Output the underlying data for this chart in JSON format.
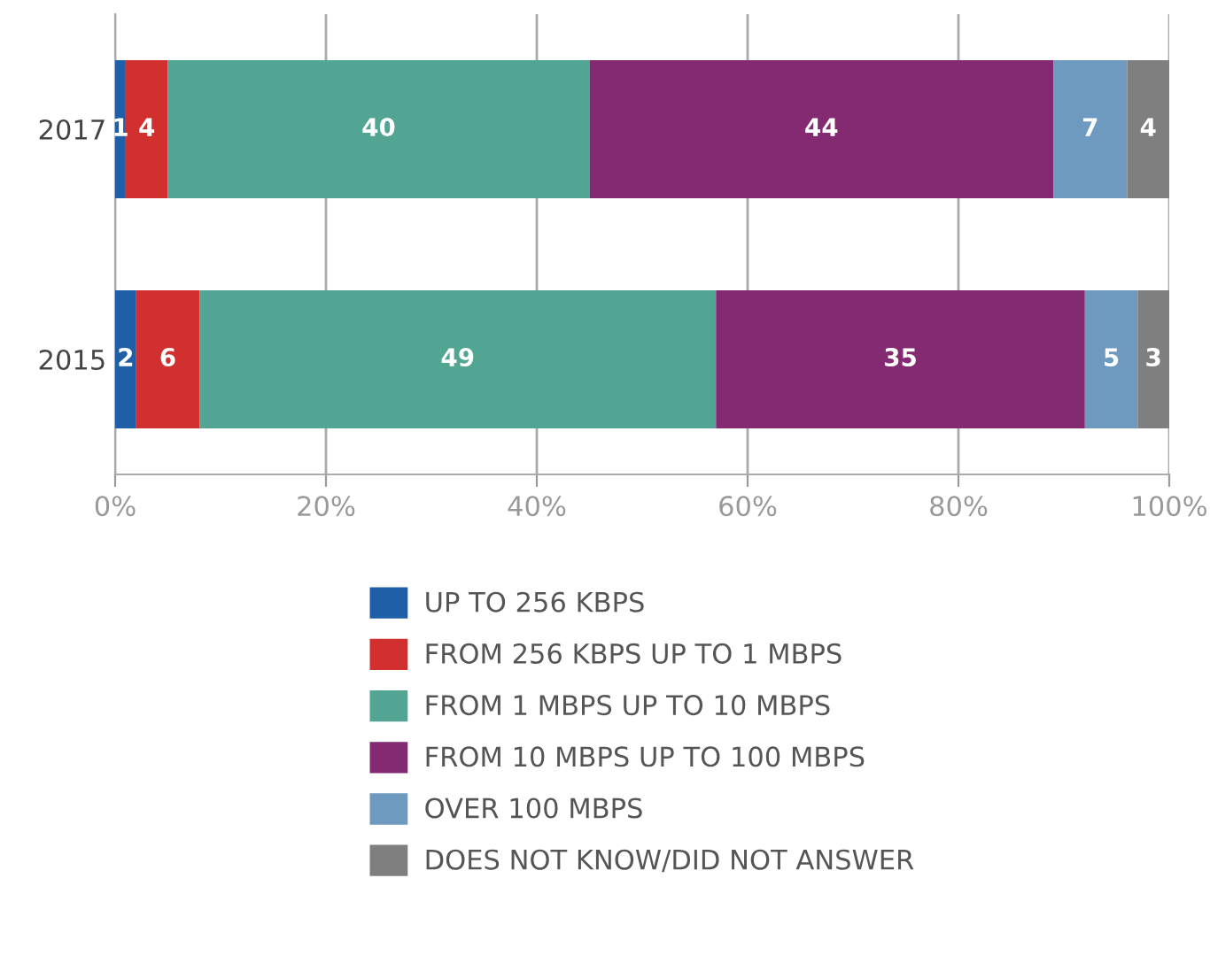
{
  "chart_data": {
    "type": "bar",
    "orientation": "horizontal",
    "stacked": true,
    "categories": [
      "2017",
      "2015"
    ],
    "series": [
      {
        "name": "UP TO 256 KBPS",
        "color": "#1f5fa8",
        "values": [
          1,
          2
        ]
      },
      {
        "name": "FROM 256 KBPS UP TO 1 MBPS",
        "color": "#d1302f",
        "values": [
          4,
          6
        ]
      },
      {
        "name": "FROM 1 MBPS UP TO 10 MBPS",
        "color": "#52a593",
        "values": [
          40,
          49
        ]
      },
      {
        "name": "FROM 10 MBPS UP TO 100 MBPS",
        "color": "#832a72",
        "values": [
          44,
          35
        ]
      },
      {
        "name": "OVER 100 MBPS",
        "color": "#6f9abf",
        "values": [
          7,
          5
        ]
      },
      {
        "name": "DOES NOT KNOW/DID NOT ANSWER",
        "color": "#7f7f80",
        "values": [
          4,
          3
        ]
      }
    ],
    "xlim": [
      0,
      100
    ],
    "xticks": [
      {
        "value": 0,
        "label": "0%"
      },
      {
        "value": 20,
        "label": "20%"
      },
      {
        "value": 40,
        "label": "40%"
      },
      {
        "value": 60,
        "label": "60%"
      },
      {
        "value": 80,
        "label": "80%"
      },
      {
        "value": 100,
        "label": "100%"
      }
    ],
    "grid": "x",
    "legend": "bottom",
    "data_labels": true
  }
}
